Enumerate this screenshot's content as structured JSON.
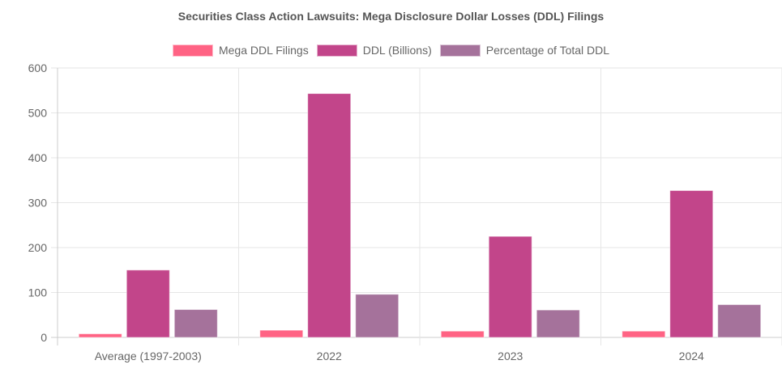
{
  "chart_data": {
    "type": "bar",
    "title": "Securities Class Action Lawsuits: Mega Disclosure Dollar Losses (DDL) Filings",
    "xlabel": "",
    "ylabel": "",
    "categories": [
      "Average (1997-2003)",
      "2022",
      "2023",
      "2024"
    ],
    "series": [
      {
        "name": "Mega DDL Filings",
        "color": "#FF6384",
        "values": [
          8,
          16,
          14,
          14
        ]
      },
      {
        "name": "DDL (Billions)",
        "color": "#C2458A",
        "values": [
          150,
          543,
          225,
          327
        ]
      },
      {
        "name": "Percentage of Total DDL",
        "color": "#A5729B",
        "values": [
          62,
          96,
          61,
          73
        ]
      }
    ],
    "ylim": [
      0,
      600
    ],
    "yticks": [
      0,
      100,
      200,
      300,
      400,
      500,
      600
    ],
    "grid": true,
    "legend_position": "top-center"
  }
}
